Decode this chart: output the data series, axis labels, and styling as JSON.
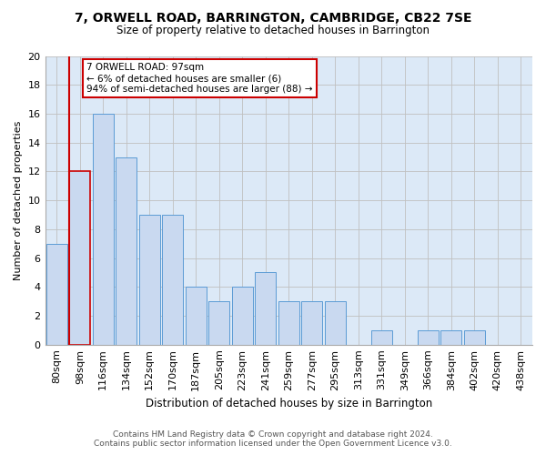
{
  "title": "7, ORWELL ROAD, BARRINGTON, CAMBRIDGE, CB22 7SE",
  "subtitle": "Size of property relative to detached houses in Barrington",
  "xlabel": "Distribution of detached houses by size in Barrington",
  "ylabel": "Number of detached properties",
  "categories": [
    "80sqm",
    "98sqm",
    "116sqm",
    "134sqm",
    "152sqm",
    "170sqm",
    "187sqm",
    "205sqm",
    "223sqm",
    "241sqm",
    "259sqm",
    "277sqm",
    "295sqm",
    "313sqm",
    "331sqm",
    "349sqm",
    "366sqm",
    "384sqm",
    "402sqm",
    "420sqm",
    "438sqm"
  ],
  "values": [
    7,
    12,
    16,
    13,
    9,
    9,
    4,
    3,
    4,
    5,
    3,
    3,
    3,
    0,
    1,
    0,
    1,
    1,
    1,
    0,
    0
  ],
  "bar_color": "#c9d9f0",
  "bar_edge_color": "#5b9bd5",
  "highlight_bar_index": 1,
  "highlight_bar_edge_color": "#cc0000",
  "annotation_text": "7 ORWELL ROAD: 97sqm\n← 6% of detached houses are smaller (6)\n94% of semi-detached houses are larger (88) →",
  "annotation_box_color": "white",
  "annotation_box_edge_color": "#cc0000",
  "ylim": [
    0,
    20
  ],
  "yticks": [
    0,
    2,
    4,
    6,
    8,
    10,
    12,
    14,
    16,
    18,
    20
  ],
  "grid_color": "#c0c0c0",
  "bg_color": "#dce9f7",
  "footer_line1": "Contains HM Land Registry data © Crown copyright and database right 2024.",
  "footer_line2": "Contains public sector information licensed under the Open Government Licence v3.0."
}
